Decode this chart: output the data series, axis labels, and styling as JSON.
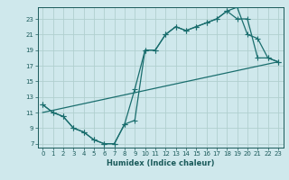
{
  "xlabel": "Humidex (Indice chaleur)",
  "xlim": [
    -0.5,
    23.5
  ],
  "ylim": [
    6.5,
    24.5
  ],
  "xticks": [
    0,
    1,
    2,
    3,
    4,
    5,
    6,
    7,
    8,
    9,
    10,
    11,
    12,
    13,
    14,
    15,
    16,
    17,
    18,
    19,
    20,
    21,
    22,
    23
  ],
  "yticks": [
    7,
    9,
    11,
    13,
    15,
    17,
    19,
    21,
    23
  ],
  "bg_color": "#cfe8ec",
  "grid_color": "#b0cfcf",
  "line_color": "#1a6e6e",
  "line1_x": [
    0,
    1,
    2,
    3,
    4,
    5,
    6,
    7,
    8,
    9,
    10,
    11,
    12,
    13,
    14,
    15,
    16,
    17,
    18,
    19,
    20,
    21,
    22,
    23
  ],
  "line1_y": [
    12,
    11,
    10.5,
    9,
    8.5,
    7.5,
    7,
    7,
    9.5,
    10,
    19,
    19,
    21,
    22,
    21.5,
    22,
    22.5,
    23,
    24,
    24.5,
    21,
    20.5,
    18,
    17.5
  ],
  "line2_x": [
    0,
    1,
    2,
    3,
    4,
    5,
    6,
    7,
    8,
    9,
    10,
    11,
    12,
    13,
    14,
    15,
    16,
    17,
    18,
    19,
    20,
    21,
    22,
    23
  ],
  "line2_y": [
    12,
    11,
    10.5,
    9,
    8.5,
    7.5,
    7,
    7,
    9.5,
    14,
    19,
    19,
    21,
    22,
    21.5,
    22,
    22.5,
    23,
    24,
    23,
    23,
    18,
    18,
    17.5
  ],
  "line3_x": [
    0,
    23
  ],
  "line3_y": [
    11,
    17.5
  ]
}
